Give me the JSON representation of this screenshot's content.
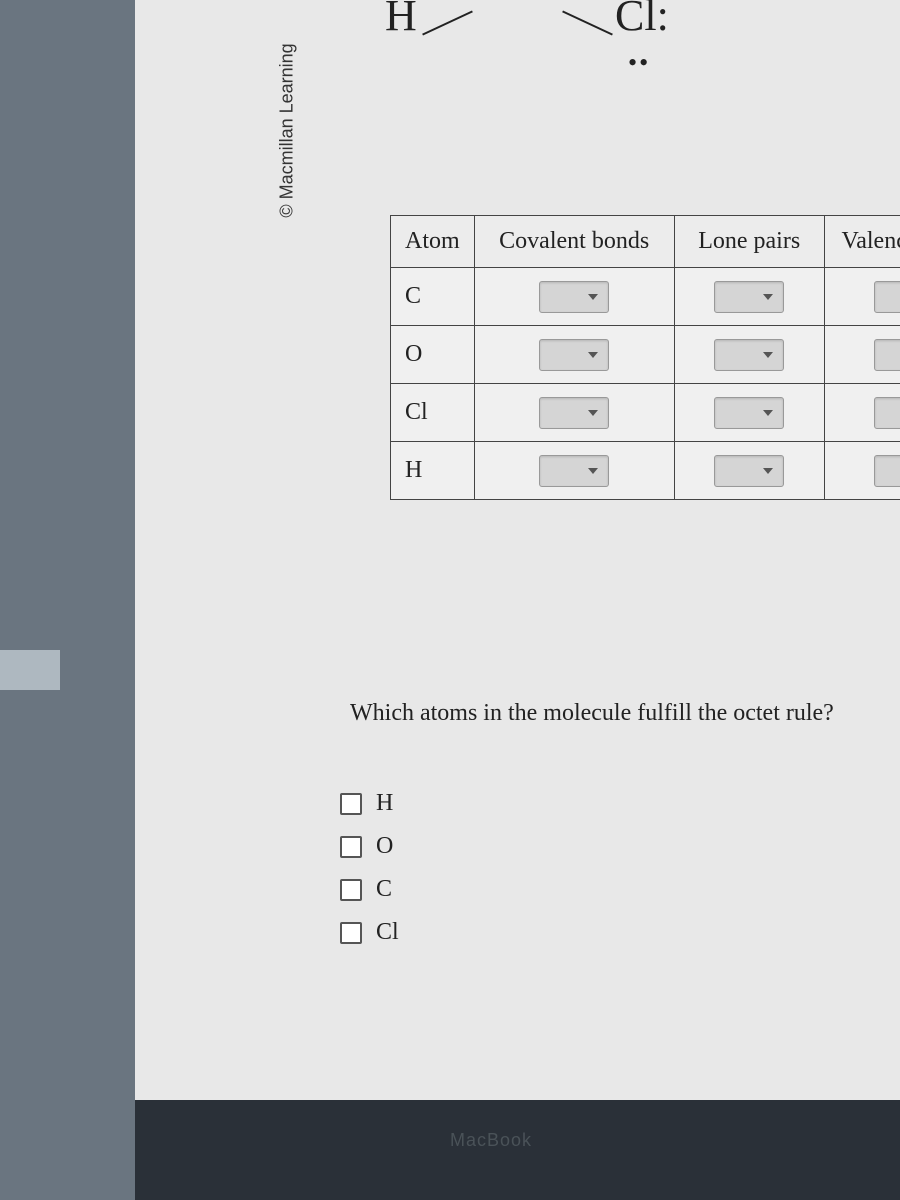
{
  "copyright": "© Macmillan Learning",
  "molecule": {
    "atom1": "H",
    "atom2": "Cl:",
    "lone_pair_dots": "••"
  },
  "table": {
    "headers": {
      "atom": "Atom",
      "covalent": "Covalent bonds",
      "lone_pairs": "Lone pairs",
      "valence": "Valence electr"
    },
    "rows": [
      {
        "atom": "C"
      },
      {
        "atom": "O"
      },
      {
        "atom": "Cl"
      },
      {
        "atom": "H"
      }
    ]
  },
  "question": "Which atoms in the molecule fulfill the octet rule?",
  "checkboxes": [
    {
      "label": "H"
    },
    {
      "label": "O"
    },
    {
      "label": "C"
    },
    {
      "label": "Cl"
    }
  ],
  "bottom_text": "MacBook",
  "colors": {
    "page_bg": "#e8e8e8",
    "body_bg": "#4a5560",
    "border": "#444",
    "text": "#222",
    "dropdown_bg": "#d5d5d5"
  }
}
